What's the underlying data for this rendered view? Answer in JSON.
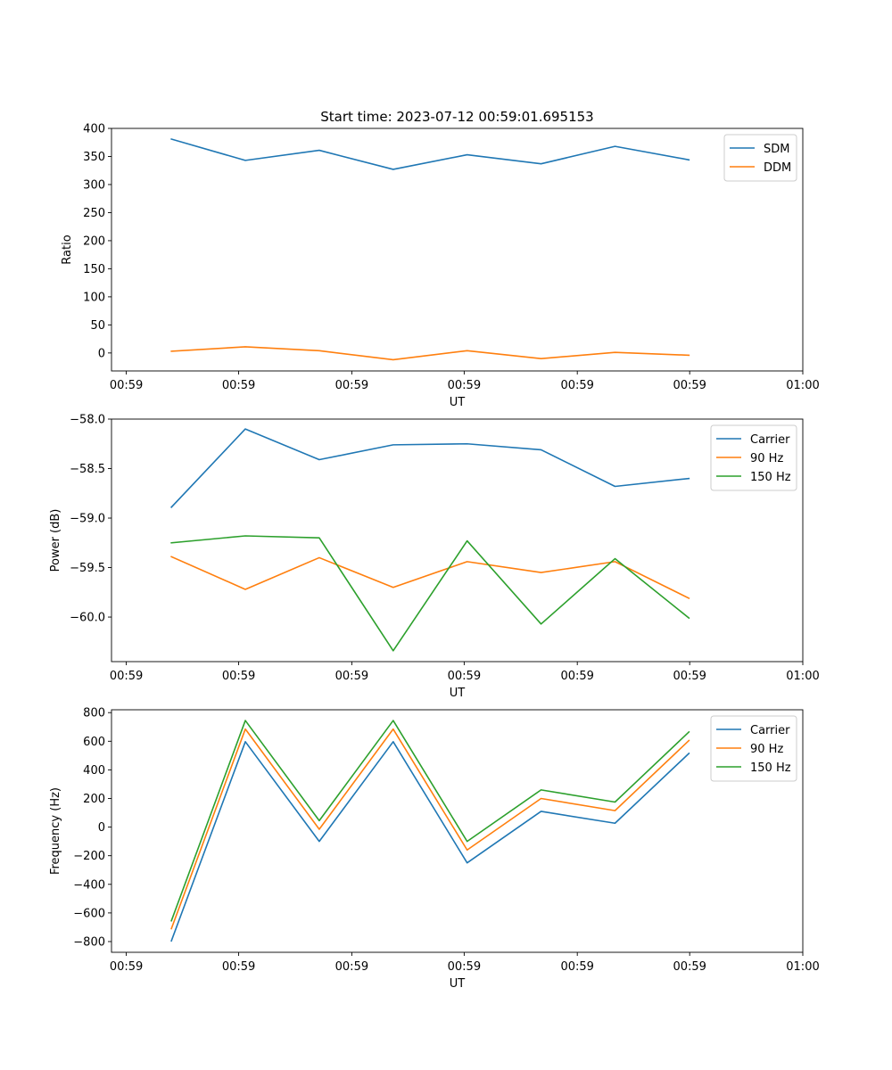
{
  "figure": {
    "title": "Start time: 2023-07-12 00:59:01.695153"
  },
  "colors": {
    "blue": "#1f77b4",
    "orange": "#ff7f0e",
    "green": "#2ca02c"
  },
  "chart_data": [
    {
      "id": "ratio",
      "type": "line",
      "title": "Start time: 2023-07-12 00:59:01.695153",
      "xlabel": "UT",
      "ylabel": "Ratio",
      "x": [
        1,
        2,
        3,
        4,
        5,
        6,
        7,
        8
      ],
      "xlim": [
        0.19,
        9.54
      ],
      "xticks": [
        0.39,
        1.91,
        3.44,
        4.96,
        6.49,
        8.01,
        9.54
      ],
      "xticklabels": [
        "00:59",
        "00:59",
        "00:59",
        "00:59",
        "00:59",
        "00:59",
        "01:00"
      ],
      "ylim": [
        -32,
        400
      ],
      "yticks": [
        0,
        50,
        100,
        150,
        200,
        250,
        300,
        350,
        400
      ],
      "yticklabels": [
        "0",
        "50",
        "100",
        "150",
        "200",
        "250",
        "300",
        "350",
        "400"
      ],
      "legend": "top-right",
      "series": [
        {
          "name": "SDM",
          "color": "#1f77b4",
          "values": [
            381,
            343,
            361,
            327,
            353,
            337,
            368,
            344
          ]
        },
        {
          "name": "DDM",
          "color": "#ff7f0e",
          "values": [
            3,
            11,
            4,
            -12,
            4,
            -10,
            1,
            -4
          ]
        }
      ]
    },
    {
      "id": "power",
      "type": "line",
      "title": "",
      "xlabel": "UT",
      "ylabel": "Power (dB)",
      "x": [
        1,
        2,
        3,
        4,
        5,
        6,
        7,
        8
      ],
      "xlim": [
        0.19,
        9.54
      ],
      "xticks": [
        0.39,
        1.91,
        3.44,
        4.96,
        6.49,
        8.01,
        9.54
      ],
      "xticklabels": [
        "00:59",
        "00:59",
        "00:59",
        "00:59",
        "00:59",
        "00:59",
        "01:00"
      ],
      "ylim": [
        -60.45,
        -58.0
      ],
      "yticks": [
        -60.0,
        -59.5,
        -59.0,
        -58.5,
        -58.0
      ],
      "yticklabels": [
        "−60.0",
        "−59.5",
        "−59.0",
        "−58.5",
        "−58.0"
      ],
      "legend": "top-right",
      "series": [
        {
          "name": "Carrier",
          "color": "#1f77b4",
          "values": [
            -58.89,
            -58.1,
            -58.41,
            -58.26,
            -58.25,
            -58.31,
            -58.68,
            -58.6
          ]
        },
        {
          "name": "90 Hz",
          "color": "#ff7f0e",
          "values": [
            -59.39,
            -59.72,
            -59.4,
            -59.7,
            -59.44,
            -59.55,
            -59.44,
            -59.81
          ]
        },
        {
          "name": "150 Hz",
          "color": "#2ca02c",
          "values": [
            -59.25,
            -59.18,
            -59.2,
            -60.34,
            -59.23,
            -60.07,
            -59.41,
            -60.01
          ]
        }
      ]
    },
    {
      "id": "frequency",
      "type": "line",
      "title": "",
      "xlabel": "UT",
      "ylabel": "Frequency (Hz)",
      "x": [
        1,
        2,
        3,
        4,
        5,
        6,
        7,
        8
      ],
      "xlim": [
        0.19,
        9.54
      ],
      "xticks": [
        0.39,
        1.91,
        3.44,
        4.96,
        6.49,
        8.01,
        9.54
      ],
      "xticklabels": [
        "00:59",
        "00:59",
        "00:59",
        "00:59",
        "00:59",
        "00:59",
        "01:00"
      ],
      "ylim": [
        -875,
        820
      ],
      "yticks": [
        -800,
        -600,
        -400,
        -200,
        0,
        200,
        400,
        600,
        800
      ],
      "yticklabels": [
        "−800",
        "−600",
        "−400",
        "−200",
        "0",
        "200",
        "400",
        "600",
        "800"
      ],
      "legend": "top-right",
      "series": [
        {
          "name": "Carrier",
          "color": "#1f77b4",
          "values": [
            -795,
            597,
            -100,
            597,
            -250,
            110,
            27,
            515
          ]
        },
        {
          "name": "90 Hz",
          "color": "#ff7f0e",
          "values": [
            -710,
            685,
            -15,
            685,
            -160,
            200,
            115,
            605
          ]
        },
        {
          "name": "150 Hz",
          "color": "#2ca02c",
          "values": [
            -655,
            745,
            45,
            745,
            -100,
            260,
            175,
            665
          ]
        }
      ]
    }
  ]
}
